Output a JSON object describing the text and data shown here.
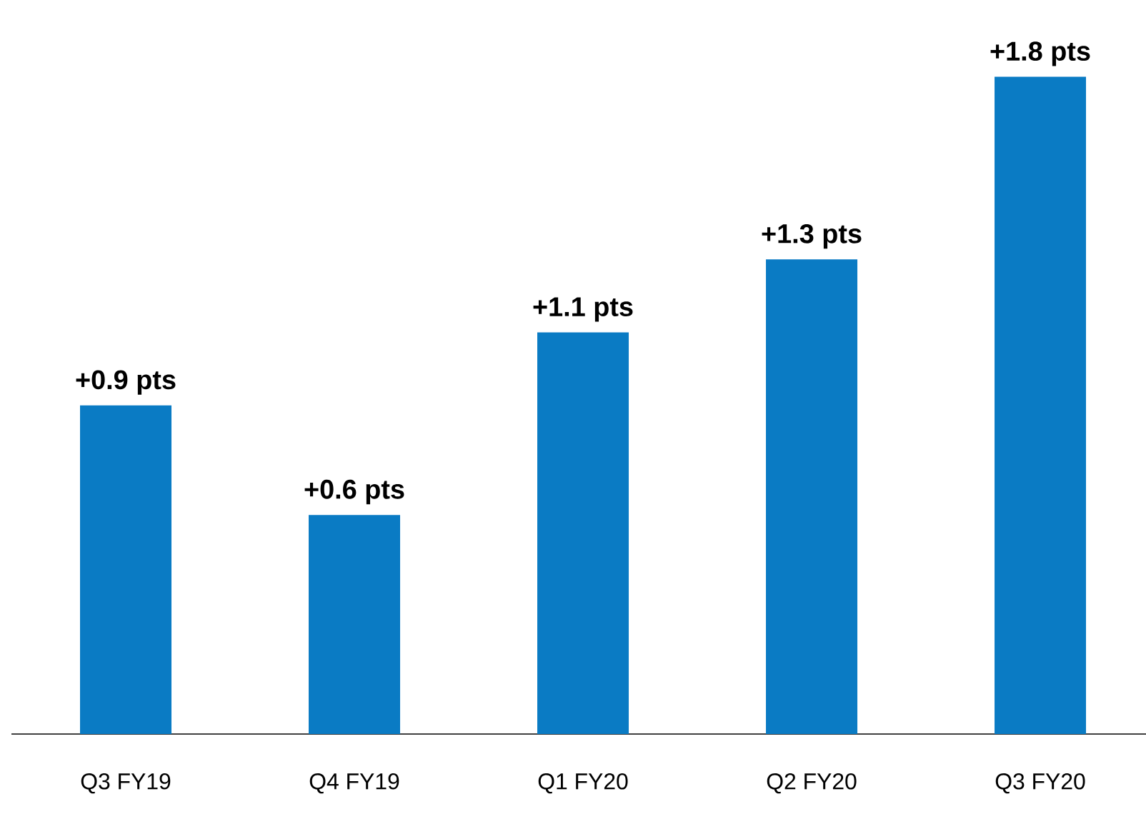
{
  "chart_data": {
    "type": "bar",
    "categories": [
      "Q3 FY19",
      "Q4 FY19",
      "Q1 FY20",
      "Q2 FY20",
      "Q3 FY20"
    ],
    "values": [
      0.9,
      0.6,
      1.1,
      1.3,
      1.8
    ],
    "value_labels": [
      "+0.9 pts",
      "+0.6 pts",
      "+1.1 pts",
      "+1.3 pts",
      "+1.8 pts"
    ],
    "color": "#0a7bc4"
  }
}
